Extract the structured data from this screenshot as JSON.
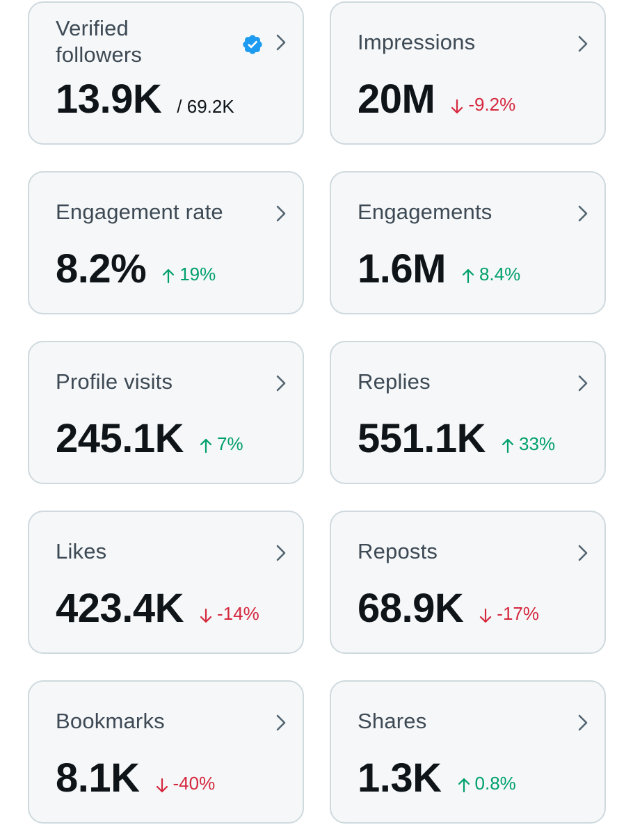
{
  "colors": {
    "card_bg": "#f5f7f8",
    "card_border": "#cfd9de",
    "label": "#3d4954",
    "value": "#0f1419",
    "positive": "#00a069",
    "negative": "#d5283e",
    "verified": "#1d9bf0"
  },
  "cards": [
    {
      "label": "Verified followers",
      "value": "13.9K",
      "suffix": "/ 69.2K",
      "badge_icon": "verified-badge-icon",
      "chevron_icon": "chevron-right-icon"
    },
    {
      "label": "Impressions",
      "value": "20M",
      "change": "-9.2%",
      "direction": "down",
      "chevron_icon": "chevron-right-icon"
    },
    {
      "label": "Engagement rate",
      "value": "8.2%",
      "change": "19%",
      "direction": "up",
      "chevron_icon": "chevron-right-icon"
    },
    {
      "label": "Engagements",
      "value": "1.6M",
      "change": "8.4%",
      "direction": "up",
      "chevron_icon": "chevron-right-icon"
    },
    {
      "label": "Profile visits",
      "value": "245.1K",
      "change": "7%",
      "direction": "up",
      "chevron_icon": "chevron-right-icon"
    },
    {
      "label": "Replies",
      "value": "551.1K",
      "change": "33%",
      "direction": "up",
      "chevron_icon": "chevron-right-icon"
    },
    {
      "label": "Likes",
      "value": "423.4K",
      "change": "-14%",
      "direction": "down",
      "chevron_icon": "chevron-right-icon"
    },
    {
      "label": "Reposts",
      "value": "68.9K",
      "change": "-17%",
      "direction": "down",
      "chevron_icon": "chevron-right-icon"
    },
    {
      "label": "Bookmarks",
      "value": "8.1K",
      "change": "-40%",
      "direction": "down",
      "chevron_icon": "chevron-right-icon"
    },
    {
      "label": "Shares",
      "value": "1.3K",
      "change": "0.8%",
      "direction": "up",
      "chevron_icon": "chevron-right-icon"
    }
  ]
}
